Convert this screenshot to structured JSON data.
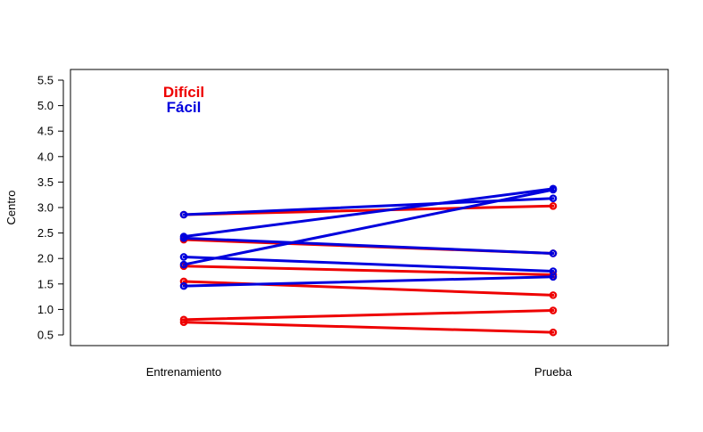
{
  "chart_data": {
    "type": "line",
    "title": "",
    "xlabel": "",
    "ylabel": "Centro",
    "categories": [
      "Entrenamiento",
      "Prueba"
    ],
    "ylim": [
      0.5,
      5.5
    ],
    "yticks": [
      "0.5",
      "1.0",
      "1.5",
      "2.0",
      "2.5",
      "3.0",
      "3.5",
      "4.0",
      "4.5",
      "5.0",
      "5.5"
    ],
    "grid": false,
    "legend_placement": "top-left",
    "legend": [
      {
        "name": "Difícil",
        "color": "#ee0000"
      },
      {
        "name": "Fácil",
        "color": "#0000dd"
      }
    ],
    "series": [
      {
        "group": "Difícil",
        "values": [
          2.86,
          3.03
        ]
      },
      {
        "group": "Difícil",
        "values": [
          2.37,
          2.1
        ]
      },
      {
        "group": "Difícil",
        "values": [
          1.85,
          1.68
        ]
      },
      {
        "group": "Difícil",
        "values": [
          1.55,
          1.28
        ]
      },
      {
        "group": "Difícil",
        "values": [
          0.8,
          0.98
        ]
      },
      {
        "group": "Difícil",
        "values": [
          0.75,
          0.55
        ]
      },
      {
        "group": "Fácil",
        "values": [
          2.86,
          3.18
        ]
      },
      {
        "group": "Fácil",
        "values": [
          2.43,
          3.37
        ]
      },
      {
        "group": "Fácil",
        "values": [
          2.03,
          1.75
        ]
      },
      {
        "group": "Fácil",
        "values": [
          1.88,
          3.35
        ]
      },
      {
        "group": "Fácil",
        "values": [
          1.46,
          1.64
        ]
      },
      {
        "group": "Fácil",
        "values": [
          2.4,
          2.1
        ]
      }
    ]
  }
}
